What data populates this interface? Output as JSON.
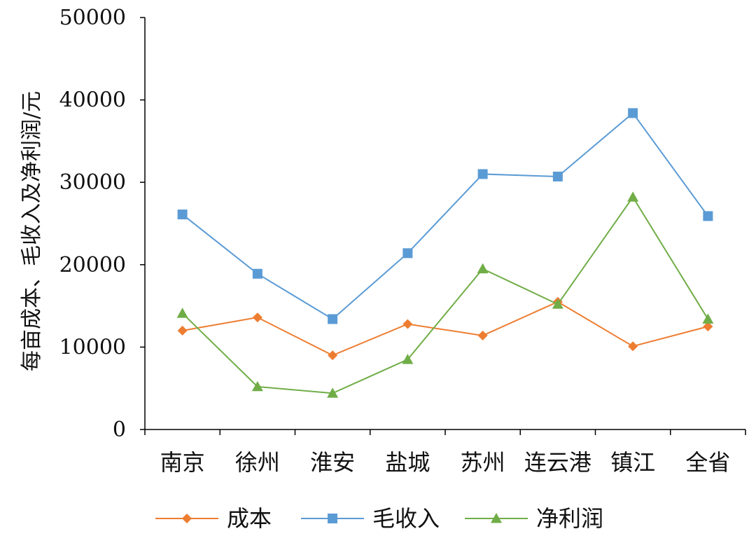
{
  "chart_data": {
    "type": "line",
    "title": "",
    "xlabel": "",
    "ylabel": "每亩成本、毛收入及净利润/元",
    "categories": [
      "南京",
      "徐州",
      "淮安",
      "盐城",
      "苏州",
      "连云港",
      "镇江",
      "全省"
    ],
    "yticks": [
      "0",
      "10000",
      "20000",
      "30000",
      "40000",
      "50000"
    ],
    "ylim": [
      0,
      50000
    ],
    "grid": false,
    "legend_position": "bottom",
    "series": [
      {
        "name": "成本",
        "color": "#ED7D31",
        "marker": "diamond",
        "values": [
          12000,
          13600,
          9000,
          12800,
          11400,
          15500,
          10100,
          12500
        ]
      },
      {
        "name": "毛收入",
        "color": "#5B9BD5",
        "marker": "square",
        "values": [
          26100,
          18900,
          13400,
          21400,
          31000,
          30700,
          38400,
          25900
        ]
      },
      {
        "name": "净利润",
        "color": "#70AD47",
        "marker": "triangle",
        "values": [
          14100,
          5200,
          4400,
          8500,
          19500,
          15200,
          28200,
          13400
        ]
      }
    ]
  }
}
